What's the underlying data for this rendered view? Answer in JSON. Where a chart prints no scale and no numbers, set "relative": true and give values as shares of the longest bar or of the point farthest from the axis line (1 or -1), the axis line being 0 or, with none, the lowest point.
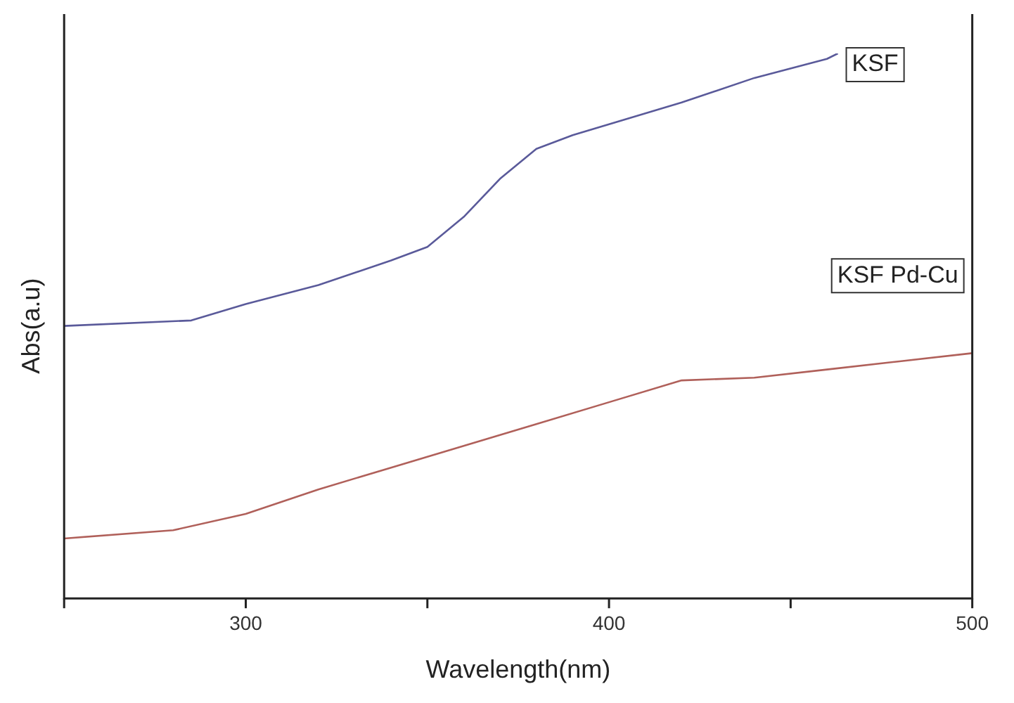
{
  "chart_data": {
    "type": "line",
    "xlabel": "Wavelength(nm)",
    "ylabel": "Abs(a.u)",
    "relative": true,
    "xlim": [
      250,
      500
    ],
    "xticks": [
      {
        "value": 250,
        "label": null
      },
      300,
      {
        "value": 350,
        "label": null
      },
      400,
      {
        "value": 450,
        "label": null
      },
      500
    ],
    "grid": false,
    "legend": false,
    "marker": "none",
    "line_style": "solid",
    "series": [
      {
        "name": "KSF",
        "color": "#5a5a9a",
        "x": [
          250,
          285,
          300,
          320,
          340,
          350,
          360,
          370,
          380,
          390,
          400,
          420,
          440,
          460,
          463
        ],
        "values": [
          0.5,
          0.51,
          0.54,
          0.575,
          0.62,
          0.645,
          0.7,
          0.77,
          0.825,
          0.85,
          0.87,
          0.91,
          0.955,
          0.99,
          1.0
        ]
      },
      {
        "name": "KSF Pd-Cu",
        "color": "#b0605a",
        "x": [
          250,
          280,
          300,
          320,
          340,
          360,
          380,
          400,
          420,
          440,
          460,
          480,
          500
        ],
        "values": [
          0.11,
          0.125,
          0.155,
          0.2,
          0.24,
          0.28,
          0.32,
          0.36,
          0.4,
          0.405,
          0.42,
          0.435,
          0.45
        ]
      }
    ]
  }
}
